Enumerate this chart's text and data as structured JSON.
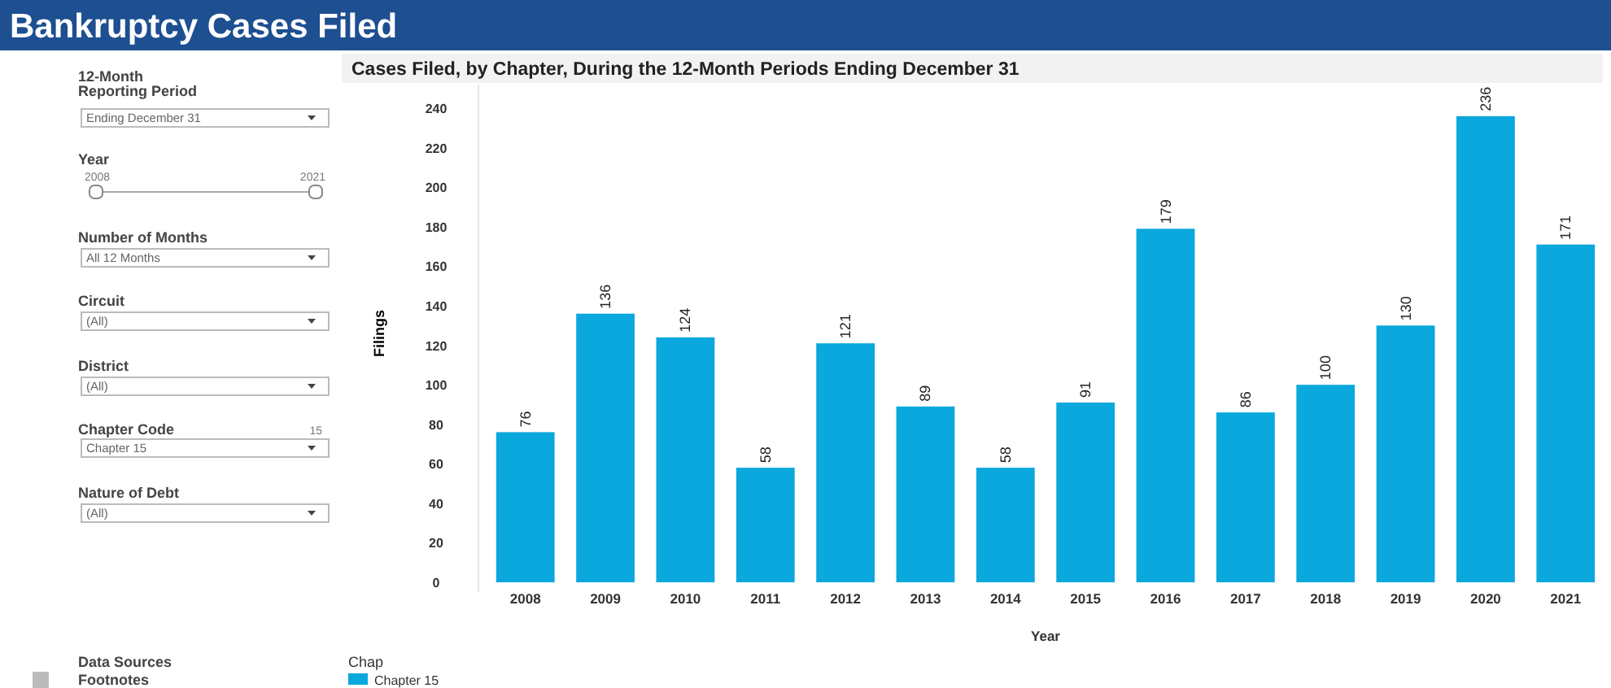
{
  "chart_data": {
    "type": "bar",
    "title": "Bankruptcy Cases Filed",
    "subtitle": "Cases Filed, by Chapter, During the 12-Month Periods Ending December 31",
    "xlabel": "Year",
    "ylabel": "Filings",
    "legend_title": "Chap",
    "categories": [
      "2008",
      "2009",
      "2010",
      "2011",
      "2012",
      "2013",
      "2014",
      "2015",
      "2016",
      "2017",
      "2018",
      "2019",
      "2020",
      "2021"
    ],
    "series": [
      {
        "name": "Chapter 15",
        "color": "#0aa8dc",
        "values": [
          76,
          136,
          124,
          58,
          121,
          89,
          58,
          91,
          179,
          86,
          100,
          130,
          236,
          171
        ]
      }
    ],
    "ylim": [
      0,
      252
    ],
    "yticks": [
      0,
      20,
      40,
      60,
      80,
      100,
      120,
      140,
      160,
      180,
      200,
      220,
      240
    ],
    "grid": false,
    "legend": "bottom left",
    "data_labels": true,
    "annotations": [
      "12-Month\nReporting Period",
      "Ending December 31",
      "Year",
      "2008",
      "2021",
      "Number of Months",
      "All 12 Months",
      "Circuit",
      "(All)",
      "District",
      "(All)",
      "Chapter Code",
      "15",
      "Chapter 15",
      "Nature of Debt",
      "(All)",
      "Data Sources",
      "Footnotes"
    ]
  }
}
